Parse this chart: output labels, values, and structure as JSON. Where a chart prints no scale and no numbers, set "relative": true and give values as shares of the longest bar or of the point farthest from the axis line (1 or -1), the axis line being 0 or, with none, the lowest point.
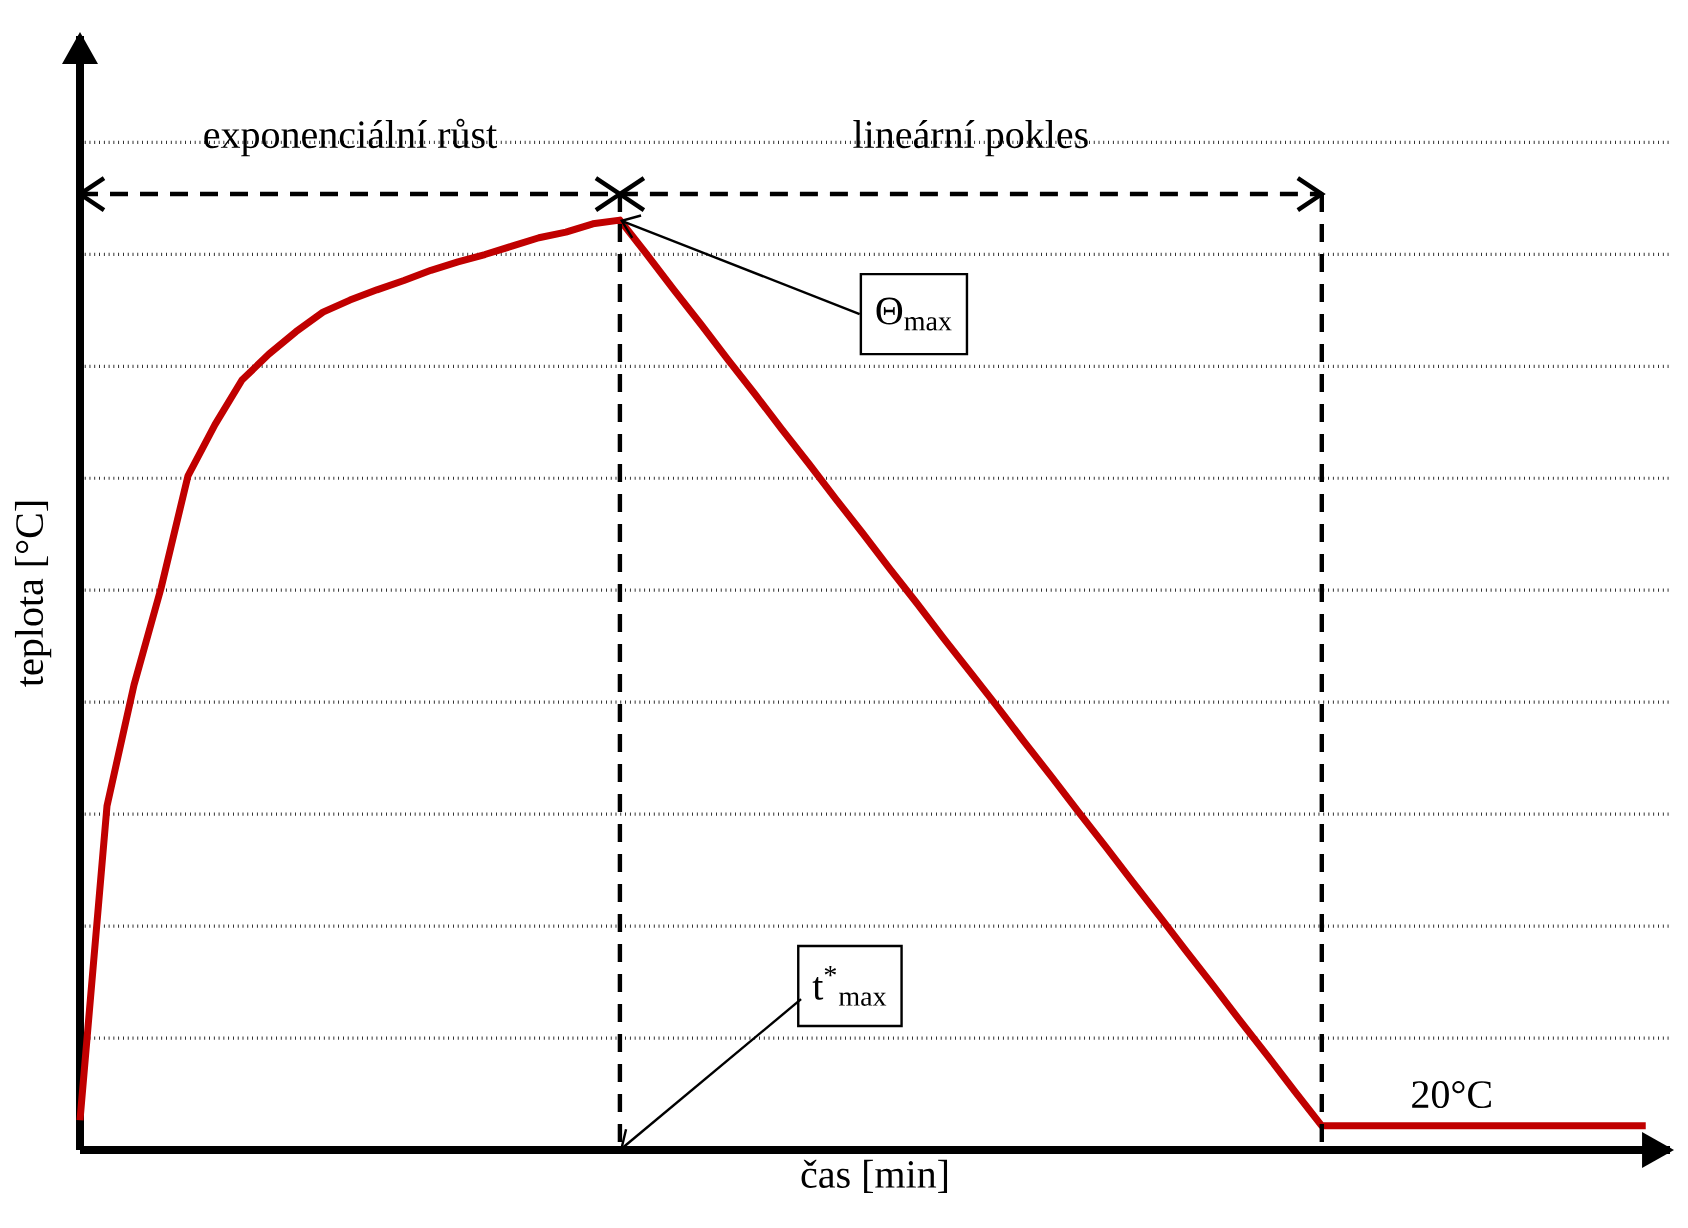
{
  "chart_data": {
    "type": "line",
    "relative": true,
    "xlabel": "čas [min]",
    "ylabel": "teplota [°C]",
    "categories": [
      null,
      null,
      null,
      null,
      null,
      null,
      null,
      null,
      null,
      null,
      null,
      null,
      null,
      null,
      null,
      null,
      null,
      null,
      null,
      null,
      null,
      null,
      null,
      null,
      null,
      null,
      null,
      null,
      null,
      null,
      null,
      null,
      null,
      null,
      null,
      null,
      null,
      null,
      null,
      null,
      null,
      null,
      null,
      null,
      null,
      null,
      null,
      null,
      null,
      null,
      null,
      null,
      null,
      null,
      null,
      null,
      null,
      null,
      null
    ],
    "values": [
      0.032,
      0.37,
      0.5,
      0.604,
      0.725,
      0.78,
      0.828,
      0.856,
      0.88,
      0.901,
      0.914,
      0.925,
      0.935,
      0.946,
      0.955,
      0.963,
      0.972,
      0.981,
      0.987,
      0.996,
      1,
      0.963,
      0.925,
      0.888,
      0.85,
      0.813,
      0.775,
      0.738,
      0.7,
      0.663,
      0.625,
      0.588,
      0.55,
      0.513,
      0.476,
      0.438,
      0.401,
      0.363,
      0.326,
      0.288,
      0.251,
      0.213,
      0.176,
      0.138,
      0.101,
      0.063,
      0.026,
      0.026,
      0.026,
      0.026,
      0.026,
      0.026,
      0.026,
      0.026,
      0.026,
      0.026,
      0.026,
      0.026,
      0.026
    ],
    "color": "#c00000",
    "grid": "y",
    "tick_labels": false,
    "marker": "none",
    "annotations": [
      "exponenciální růst",
      "lineární pokles",
      "Θ$_{max}$",
      "t$^{*}$$_{max}$",
      "20°C"
    ]
  }
}
